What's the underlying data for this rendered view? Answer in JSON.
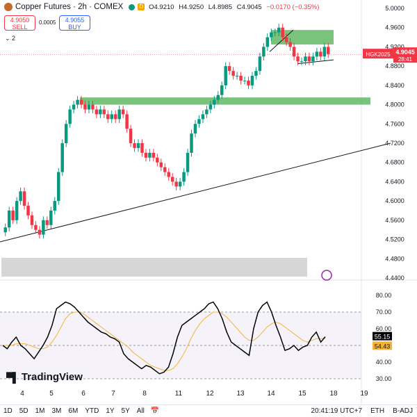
{
  "header": {
    "title": "Copper Futures · 2h · COMEX",
    "badge": "D",
    "open": "O4.9210",
    "high": "H4.9250",
    "low": "L4.8985",
    "close": "C4.9045",
    "change": "−0.0170 (−0.35%)"
  },
  "trade": {
    "sell_price": "4.9050",
    "sell_label": "SELL",
    "buy_price": "4.9055",
    "buy_label": "BUY",
    "spread": "0.0005"
  },
  "indicator_toggle": "⌄ 2",
  "price_axis": {
    "ticks": [
      "5.0000",
      "4.9600",
      "4.9200",
      "4.8800",
      "4.8400",
      "4.8000",
      "4.7600",
      "4.7200",
      "4.6800",
      "4.6400",
      "4.6000",
      "4.5600",
      "4.5200",
      "4.4800",
      "4.4400"
    ],
    "symbol_tag": "HGK2025",
    "last_price": "4.9045",
    "countdown": "28:41"
  },
  "rsi_axis": {
    "ticks": [
      "80.00",
      "70.00",
      "60.00",
      "50.00",
      "40.00",
      "30.00"
    ],
    "rsi_value": "55.15",
    "ma_value": "54.43"
  },
  "time_axis": {
    "ticks": [
      "4",
      "5",
      "6",
      "7",
      "8",
      "11",
      "12",
      "13",
      "14",
      "15",
      "18",
      "19"
    ]
  },
  "logo": "TradingView",
  "bottom_bar": {
    "timeframes": [
      "1D",
      "5D",
      "1M",
      "3M",
      "6M",
      "YTD",
      "1Y",
      "5Y",
      "All"
    ],
    "clock": "20:41:19 UTC+7",
    "session": "ETH",
    "adjust": "B-ADJ"
  },
  "colors": {
    "up": "#089981",
    "down": "#f23645",
    "zone": "#4caf50",
    "rsi_band": "#7e57c2",
    "rsi_ma": "#f5b335"
  },
  "chart_data": {
    "type": "line",
    "price_close": [
      4.545,
      4.58,
      4.56,
      4.6,
      4.62,
      4.59,
      4.57,
      4.55,
      4.54,
      4.53,
      4.56,
      4.55,
      4.58,
      4.6,
      4.66,
      4.72,
      4.76,
      4.79,
      4.8,
      4.81,
      4.8,
      4.79,
      4.8,
      4.79,
      4.78,
      4.79,
      4.78,
      4.77,
      4.78,
      4.77,
      4.79,
      4.78,
      4.75,
      4.72,
      4.71,
      4.72,
      4.7,
      4.69,
      4.7,
      4.69,
      4.68,
      4.67,
      4.66,
      4.65,
      4.64,
      4.63,
      4.64,
      4.66,
      4.7,
      4.74,
      4.76,
      4.77,
      4.78,
      4.79,
      4.8,
      4.81,
      4.82,
      4.84,
      4.88,
      4.87,
      4.86,
      4.86,
      4.85,
      4.85,
      4.84,
      4.86,
      4.87,
      4.9,
      4.92,
      4.94,
      4.95,
      4.95,
      4.96,
      4.94,
      4.93,
      4.92,
      4.9,
      4.89,
      4.89,
      4.9,
      4.89,
      4.9,
      4.91,
      4.9,
      4.92,
      4.905
    ],
    "rsi": [
      50,
      48,
      52,
      55,
      50,
      48,
      45,
      42,
      46,
      50,
      55,
      62,
      72,
      74,
      76,
      75,
      73,
      70,
      67,
      64,
      62,
      60,
      58,
      57,
      55,
      54,
      52,
      45,
      42,
      40,
      38,
      36,
      38,
      37,
      35,
      33,
      34,
      37,
      45,
      55,
      62,
      64,
      66,
      68,
      70,
      72,
      75,
      76,
      72,
      66,
      58,
      52,
      50,
      48,
      46,
      44,
      60,
      70,
      74,
      76,
      70,
      62,
      55,
      47,
      48,
      50,
      47,
      49,
      50,
      55,
      58,
      52,
      55.15
    ],
    "rsi_ma": [
      50,
      50,
      50,
      51,
      51,
      51,
      50,
      49,
      48,
      48,
      49,
      52,
      56,
      61,
      66,
      69,
      70,
      70,
      69,
      67,
      65,
      63,
      61,
      59,
      57,
      55,
      53,
      51,
      49,
      46,
      44,
      42,
      40,
      38,
      37,
      36,
      35,
      35,
      36,
      39,
      43,
      48,
      54,
      59,
      63,
      66,
      68,
      70,
      70,
      69,
      67,
      64,
      61,
      58,
      55,
      53,
      53,
      55,
      58,
      61,
      63,
      64,
      63,
      61,
      59,
      57,
      55,
      53,
      52,
      53,
      54,
      54,
      54.43
    ],
    "ylim": [
      4.44,
      5.0
    ],
    "rsi_ylim": [
      30,
      80
    ],
    "rsi_bands": [
      30,
      50,
      70
    ]
  }
}
